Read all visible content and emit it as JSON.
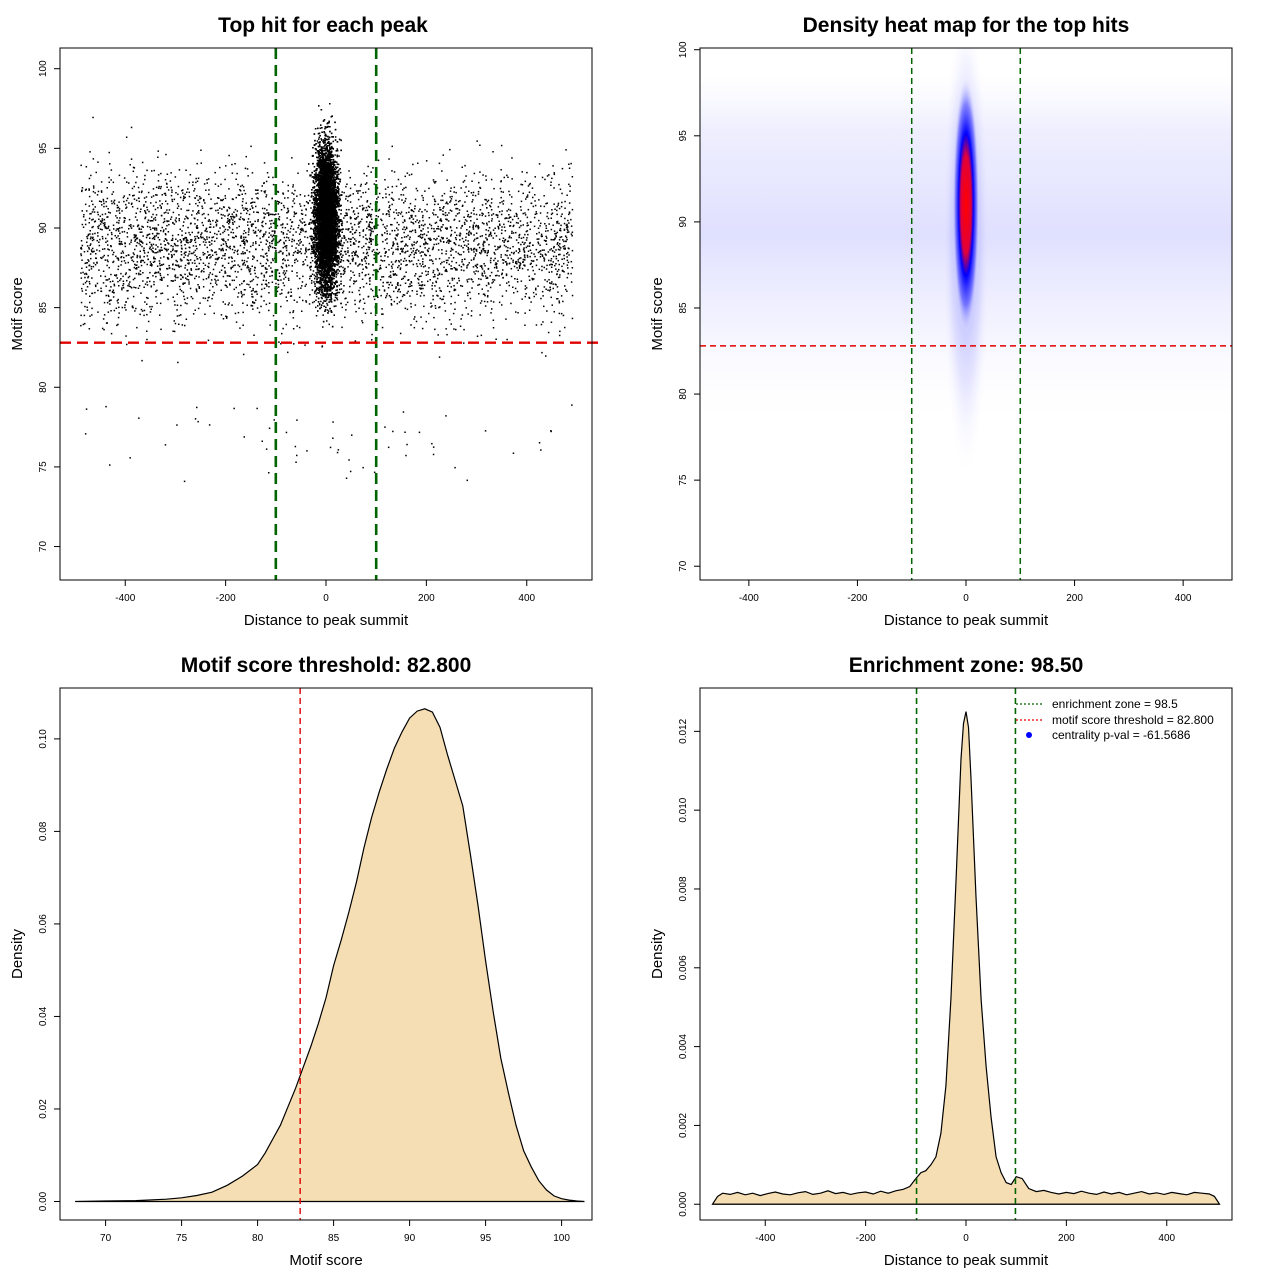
{
  "charts": [
    {
      "id": "scatter",
      "type": "scatter",
      "title": "Top hit for each peak",
      "xlabel": "Distance to peak summit",
      "ylabel": "Motif score",
      "xlim": [
        -530,
        530
      ],
      "ylim": [
        67.9,
        101.3
      ],
      "xticks": [
        -400,
        -200,
        0,
        200,
        400
      ],
      "yticks": [
        70,
        75,
        80,
        85,
        90,
        95,
        100
      ],
      "vlines": [
        -100,
        100
      ],
      "hline": 82.8,
      "line_colors": {
        "enrichment": "#006400",
        "threshold": "#e00000"
      },
      "point_color": "#000000",
      "description_of_points": "~15000 peak top hits; uniform background over distance -500..500 plus a concentrated cluster around 0"
    },
    {
      "id": "heatmap",
      "type": "heatmap",
      "title": "Density heat map for the top hits",
      "xlabel": "Distance to peak summit",
      "ylabel": "Motif score",
      "xlim": [
        -490,
        490
      ],
      "ylim": [
        69.2,
        100.1
      ],
      "xticks": [
        -400,
        -200,
        0,
        200,
        400
      ],
      "yticks": [
        70,
        75,
        80,
        85,
        90,
        95,
        100
      ],
      "vlines": [
        -100,
        100
      ],
      "hline": 82.8,
      "peak": {
        "x": 0,
        "y": 91.0
      },
      "colors": [
        "#ffffff",
        "#0000ff",
        "#ff0000"
      ]
    },
    {
      "id": "score_density",
      "type": "area",
      "title": "Motif score threshold: 82.800",
      "xlabel": "Motif score",
      "ylabel": "Density",
      "xlim": [
        67,
        102
      ],
      "ylim": [
        -0.004,
        0.111
      ],
      "xticks": [
        70,
        75,
        80,
        85,
        90,
        95,
        100
      ],
      "yticks": [
        0.0,
        0.02,
        0.04,
        0.06,
        0.08,
        0.1
      ],
      "ytick_labels": [
        "0.00",
        "0.02",
        "0.04",
        "0.06",
        "0.08",
        "0.10"
      ],
      "threshold": 82.8,
      "fill": "#f5deb3",
      "x": [
        68,
        70,
        72,
        74,
        75,
        76,
        77,
        78,
        79,
        80,
        80.5,
        81,
        81.5,
        82,
        82.5,
        83,
        83.5,
        84,
        84.5,
        85,
        85.5,
        86,
        86.5,
        87,
        87.5,
        88,
        88.5,
        89,
        89.5,
        90,
        90.5,
        91,
        91.5,
        92,
        92.5,
        93,
        93.5,
        94,
        94.5,
        95,
        95.5,
        96,
        96.5,
        97,
        97.5,
        98,
        98.5,
        99,
        99.5,
        100,
        100.5,
        101,
        101.5
      ],
      "values": [
        0,
        0.0001,
        0.0002,
        0.0005,
        0.0008,
        0.0013,
        0.002,
        0.0035,
        0.0055,
        0.008,
        0.0105,
        0.0135,
        0.0165,
        0.0205,
        0.0245,
        0.029,
        0.0335,
        0.0385,
        0.044,
        0.051,
        0.0565,
        0.0625,
        0.069,
        0.0765,
        0.083,
        0.0885,
        0.0935,
        0.098,
        0.1015,
        0.1045,
        0.106,
        0.1065,
        0.1058,
        0.1025,
        0.0965,
        0.091,
        0.0855,
        0.075,
        0.064,
        0.052,
        0.041,
        0.031,
        0.0235,
        0.0165,
        0.011,
        0.0075,
        0.0045,
        0.0025,
        0.0012,
        0.0006,
        0.0003,
        0.0001,
        0
      ]
    },
    {
      "id": "distance_density",
      "type": "area",
      "title": "Enrichment zone: 98.50",
      "xlabel": "Distance to peak summit",
      "ylabel": "Density",
      "xlim": [
        -530,
        530
      ],
      "ylim": [
        -0.0004,
        0.0131
      ],
      "xticks": [
        -400,
        -200,
        0,
        200,
        400
      ],
      "yticks": [
        0.0,
        0.002,
        0.004,
        0.006,
        0.008,
        0.01,
        0.012
      ],
      "ytick_labels": [
        "0.000",
        "0.002",
        "0.004",
        "0.006",
        "0.008",
        "0.010",
        "0.012"
      ],
      "vlines": [
        -98.5,
        98.5
      ],
      "fill": "#f5deb3",
      "x": [
        -505,
        -495,
        -485,
        -470,
        -455,
        -440,
        -425,
        -410,
        -395,
        -380,
        -365,
        -350,
        -335,
        -320,
        -305,
        -290,
        -275,
        -260,
        -245,
        -230,
        -215,
        -200,
        -185,
        -170,
        -155,
        -140,
        -125,
        -112,
        -100,
        -90,
        -80,
        -70,
        -60,
        -50,
        -40,
        -30,
        -20,
        -10,
        -5,
        0,
        5,
        10,
        20,
        30,
        40,
        50,
        60,
        70,
        80,
        90,
        100,
        112,
        125,
        140,
        155,
        170,
        185,
        200,
        215,
        230,
        245,
        260,
        275,
        290,
        305,
        320,
        335,
        350,
        365,
        380,
        395,
        410,
        425,
        440,
        455,
        470,
        485,
        495,
        505
      ],
      "values": [
        0,
        0.0002,
        0.00028,
        0.00025,
        0.0003,
        0.00024,
        0.00028,
        0.00022,
        0.00027,
        0.00031,
        0.00026,
        0.00024,
        0.00029,
        0.00032,
        0.00025,
        0.00028,
        0.00034,
        0.00027,
        0.0003,
        0.00025,
        0.00029,
        0.00031,
        0.00026,
        0.00033,
        0.00028,
        0.00034,
        0.00038,
        0.00045,
        0.00065,
        0.0008,
        0.00085,
        0.001,
        0.0012,
        0.0018,
        0.003,
        0.0052,
        0.0082,
        0.0113,
        0.0122,
        0.0125,
        0.0121,
        0.0108,
        0.0078,
        0.0052,
        0.0035,
        0.0022,
        0.0012,
        0.0008,
        0.00055,
        0.0005,
        0.0007,
        0.00065,
        0.0004,
        0.00032,
        0.00035,
        0.0003,
        0.00026,
        0.0003,
        0.00027,
        0.00033,
        0.00028,
        0.00025,
        0.00031,
        0.00026,
        0.0003,
        0.00024,
        0.00028,
        0.00032,
        0.00026,
        0.00029,
        0.00025,
        0.0003,
        0.00027,
        0.00024,
        0.0003,
        0.00028,
        0.00026,
        0.0002,
        0
      ]
    }
  ],
  "legend": {
    "items": [
      {
        "label": "enrichment zone = 98.5",
        "color": "#006400",
        "kind": "line"
      },
      {
        "label": "motif score threshold = 82.800",
        "color": "#e00000",
        "kind": "line"
      },
      {
        "label": "centrality p-val = -61.5686",
        "color": "#0000ff",
        "kind": "point"
      }
    ]
  }
}
